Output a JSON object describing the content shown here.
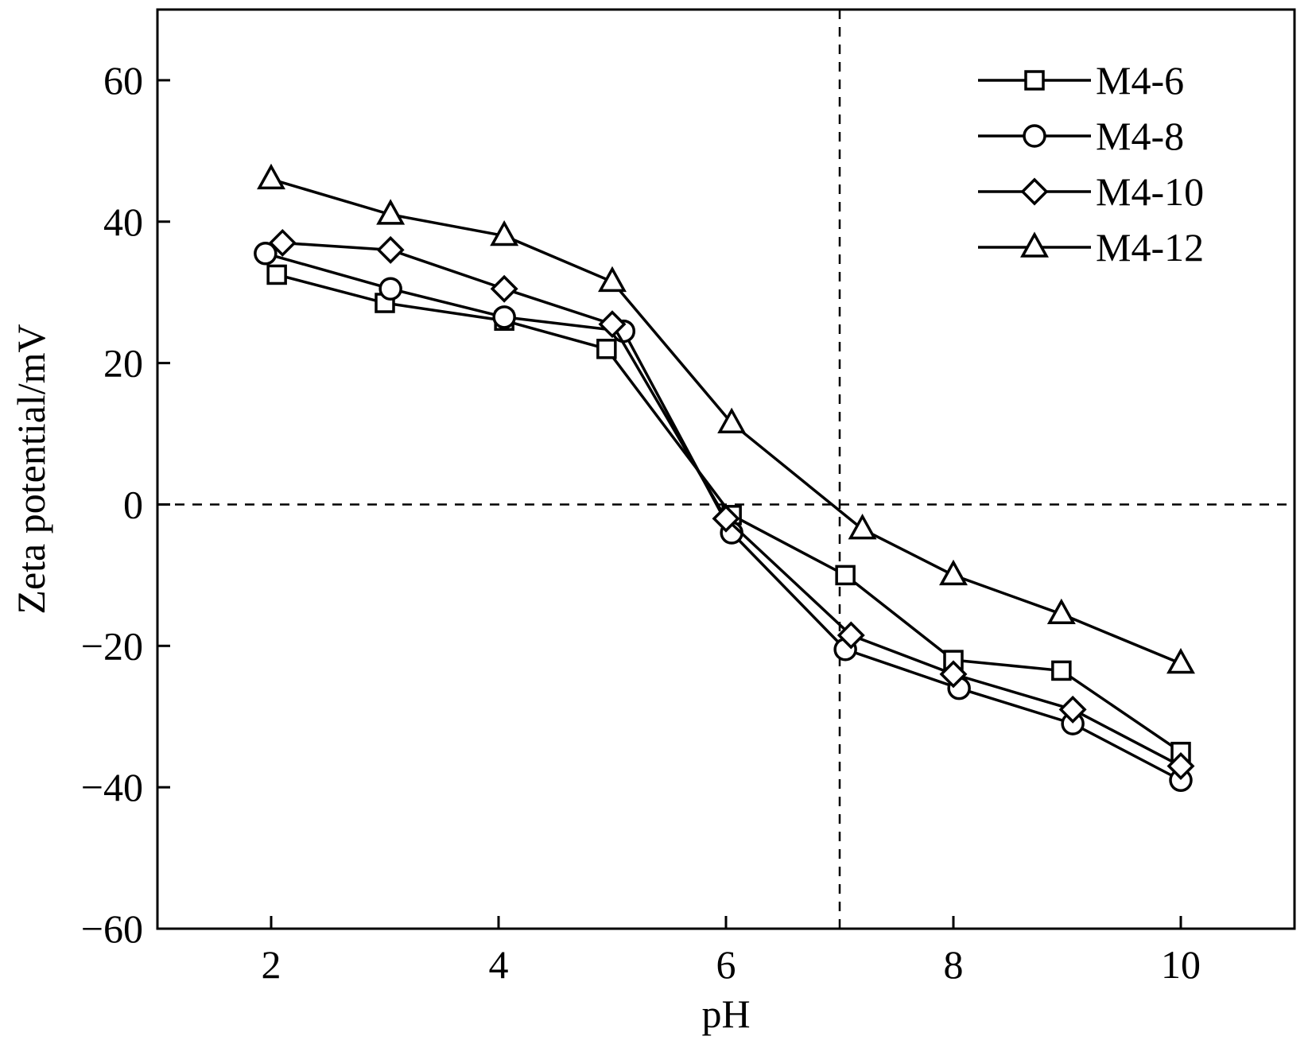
{
  "chart_data": {
    "type": "line",
    "xlabel": "pH",
    "ylabel": "Zeta potential/mV",
    "xlim": [
      1.0,
      11.0
    ],
    "ylim": [
      -60,
      70
    ],
    "xticks": [
      2,
      4,
      6,
      8,
      10
    ],
    "yticks": [
      60,
      40,
      20,
      0,
      -20,
      -40,
      -60
    ],
    "ytick_labels": [
      "60",
      "40",
      "20",
      "0",
      "−20",
      "−40",
      "−60"
    ],
    "xtick_labels": [
      "2",
      "4",
      "6",
      "8",
      "10"
    ],
    "reference_lines": [
      {
        "orientation": "horizontal",
        "value": 0,
        "style": "dashed"
      },
      {
        "orientation": "vertical",
        "value": 7,
        "style": "dashed"
      }
    ],
    "legend_position": "top-right",
    "series": [
      {
        "name": "M4-6",
        "marker": "square",
        "x": [
          2.05,
          3.0,
          4.05,
          4.95,
          6.05,
          7.05,
          8.0,
          8.95,
          10.0
        ],
        "y": [
          32.5,
          28.5,
          26.0,
          22.0,
          -1.5,
          -10.0,
          -22.0,
          -23.5,
          -35.0
        ]
      },
      {
        "name": "M4-8",
        "marker": "circle",
        "x": [
          1.95,
          3.05,
          4.05,
          5.1,
          6.05,
          7.05,
          8.05,
          9.05,
          10.0
        ],
        "y": [
          35.5,
          30.5,
          26.5,
          24.5,
          -4.0,
          -20.5,
          -26.0,
          -31.0,
          -39.0
        ]
      },
      {
        "name": "M4-10",
        "marker": "diamond",
        "x": [
          2.1,
          3.05,
          4.05,
          5.0,
          6.0,
          7.1,
          8.0,
          9.05,
          10.0
        ],
        "y": [
          37.0,
          36.0,
          30.5,
          25.5,
          -2.0,
          -18.5,
          -24.0,
          -29.0,
          -37.0
        ]
      },
      {
        "name": "M4-12",
        "marker": "triangle",
        "x": [
          2.0,
          3.05,
          4.05,
          5.0,
          6.05,
          7.2,
          8.0,
          8.95,
          10.0
        ],
        "y": [
          46.0,
          41.0,
          38.0,
          31.5,
          11.5,
          -3.5,
          -10.0,
          -15.5,
          -22.5
        ]
      }
    ]
  }
}
